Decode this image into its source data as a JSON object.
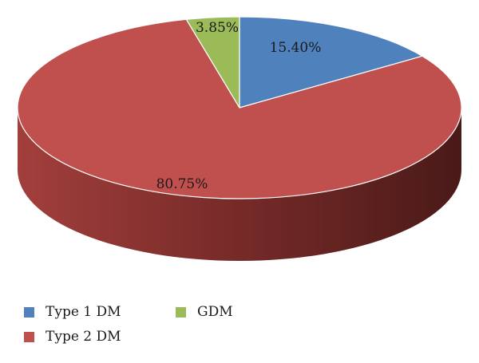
{
  "chart_data": {
    "type": "pie",
    "title": "",
    "style": "3d",
    "labels": [
      "Type 1 DM",
      "Type 2 DM",
      "GDM"
    ],
    "values": [
      15.4,
      80.75,
      3.85
    ],
    "value_labels": [
      "15.40%",
      "80.75%",
      "3.85%"
    ],
    "colors": [
      "#4f81bd",
      "#c0504d",
      "#9bbb59"
    ],
    "legend_position": "bottom-left"
  }
}
